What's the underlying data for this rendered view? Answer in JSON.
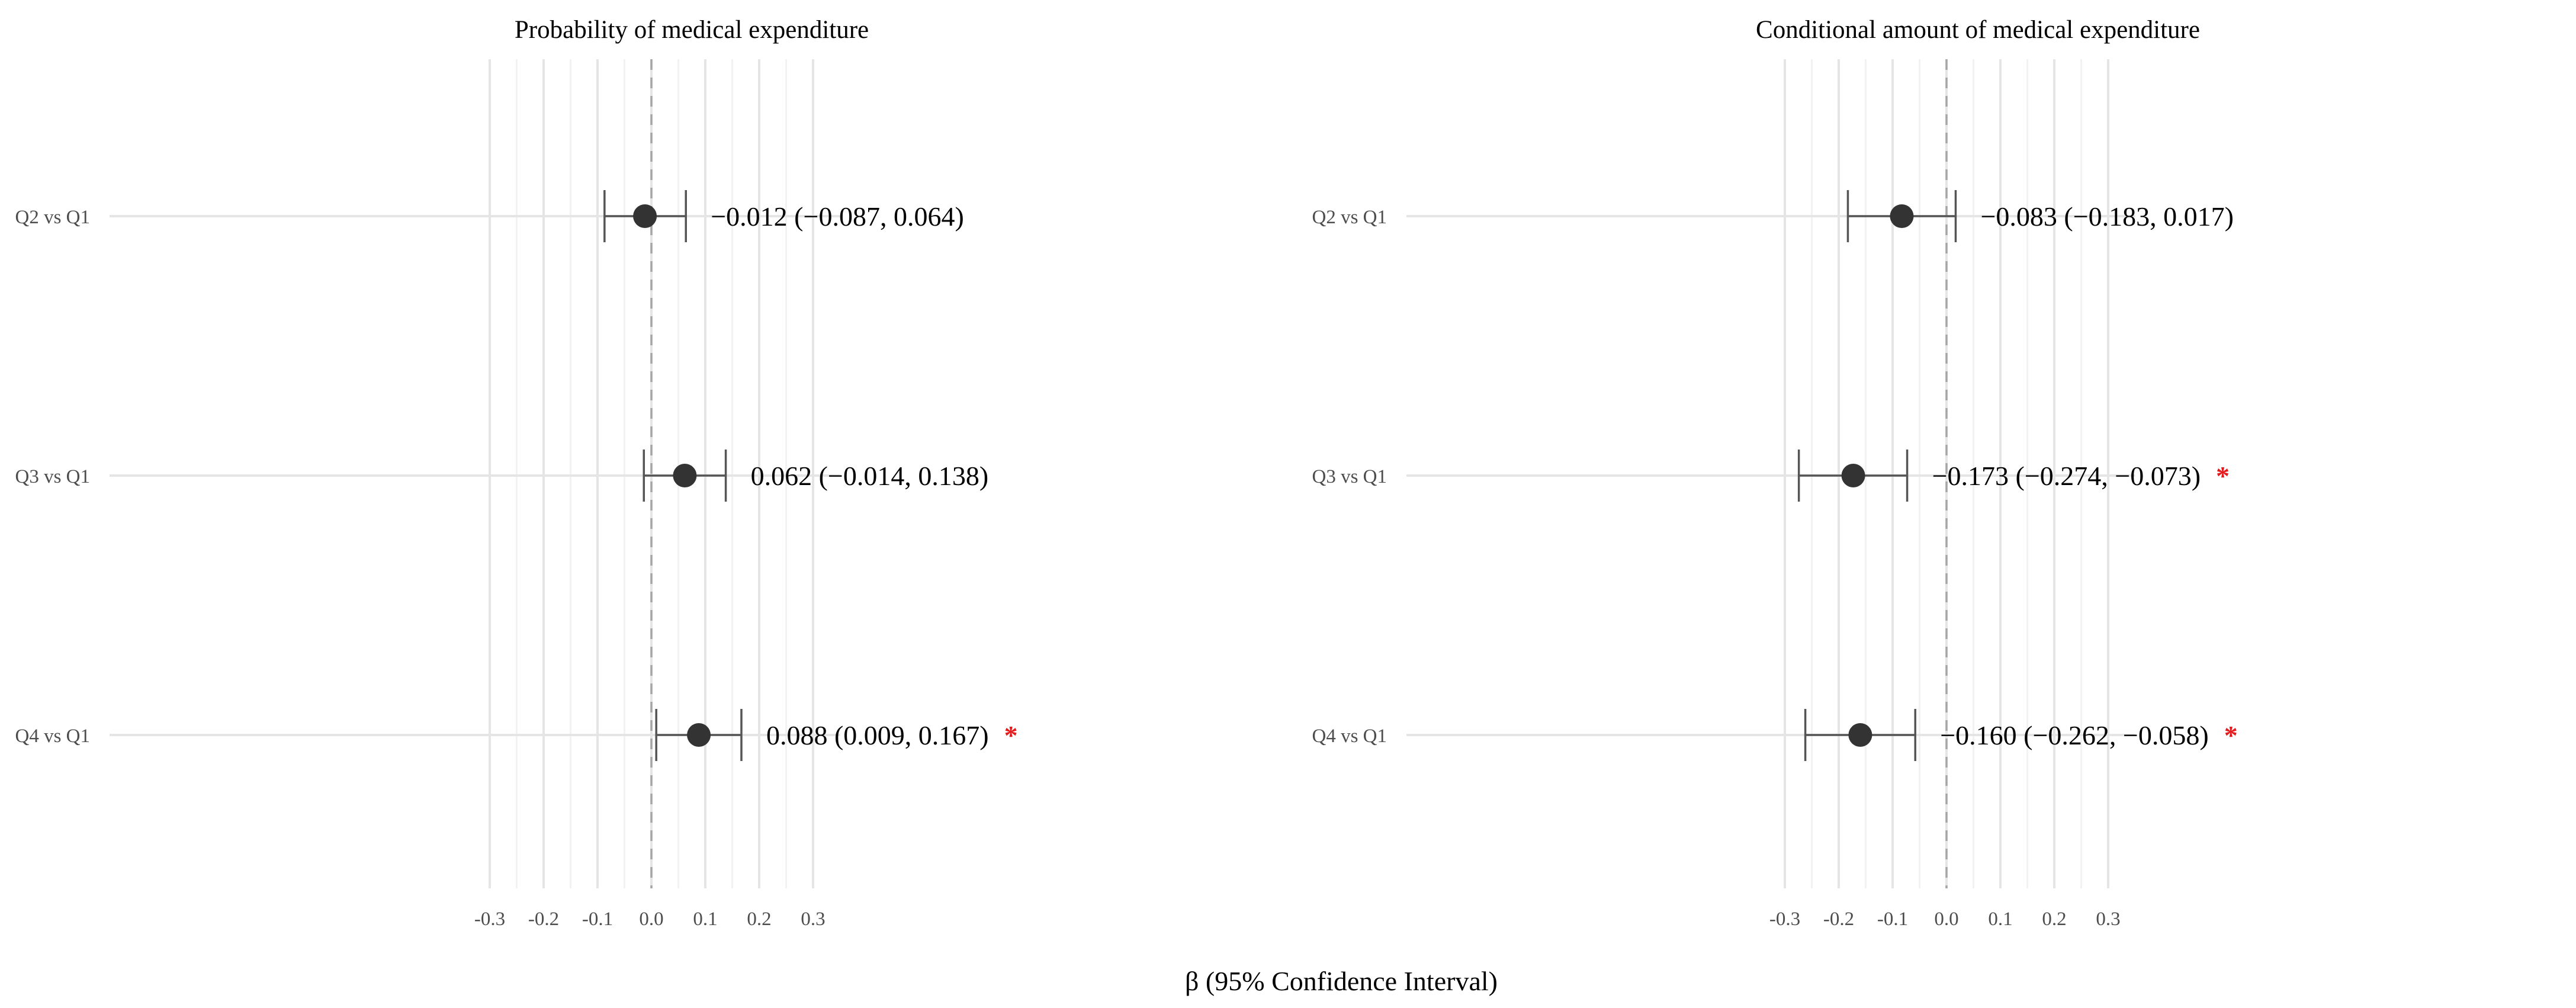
{
  "chart_data": {
    "type": "forest",
    "xlabel": "β (95% Confidence Interval)",
    "xlim": [
      -0.32,
      0.35
    ],
    "xticks": [
      -0.3,
      -0.2,
      -0.1,
      0.0,
      0.1,
      0.2,
      0.3
    ],
    "xtick_labels": [
      "-0.3",
      "-0.2",
      "-0.1",
      "0.0",
      "0.1",
      "0.2",
      "0.3"
    ],
    "reference_line": 0.0,
    "categories": [
      "Q2 vs Q1",
      "Q3 vs Q1",
      "Q4 vs Q1"
    ],
    "significance_color": "#e41a1c",
    "point_color": "#333333",
    "panels": [
      {
        "title": "Probability of medical expenditure",
        "rows": [
          {
            "label": "Q2 vs Q1",
            "estimate": -0.012,
            "lower": -0.087,
            "upper": 0.064,
            "text": "−0.012 (−0.087, 0.064)",
            "significant": false
          },
          {
            "label": "Q3 vs Q1",
            "estimate": 0.062,
            "lower": -0.014,
            "upper": 0.138,
            "text": "0.062 (−0.014, 0.138)",
            "significant": false
          },
          {
            "label": "Q4 vs Q1",
            "estimate": 0.088,
            "lower": 0.009,
            "upper": 0.167,
            "text": "0.088 (0.009, 0.167)",
            "significant": true,
            "marker": "*"
          }
        ]
      },
      {
        "title": "Conditional amount of medical expenditure",
        "rows": [
          {
            "label": "Q2 vs Q1",
            "estimate": -0.083,
            "lower": -0.183,
            "upper": 0.017,
            "text": "−0.083 (−0.183, 0.017)",
            "significant": false
          },
          {
            "label": "Q3 vs Q1",
            "estimate": -0.173,
            "lower": -0.274,
            "upper": -0.073,
            "text": "−0.173 (−0.274, −0.073)",
            "significant": true,
            "marker": "*"
          },
          {
            "label": "Q4 vs Q1",
            "estimate": -0.16,
            "lower": -0.262,
            "upper": -0.058,
            "text": "−0.160 (−0.262, −0.058)",
            "significant": true,
            "marker": "*"
          }
        ]
      }
    ]
  }
}
